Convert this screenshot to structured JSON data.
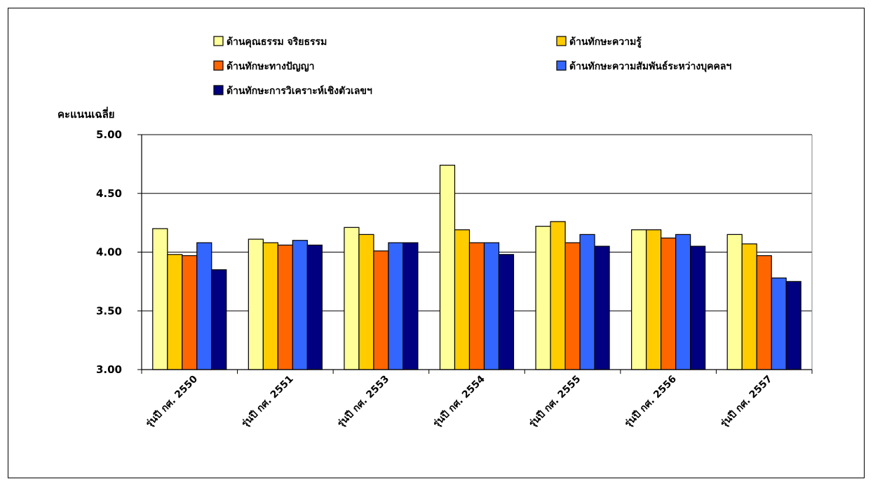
{
  "chart_data": {
    "type": "bar",
    "ylabel": "คะแนนเฉลี่ย",
    "ylim": [
      3.0,
      5.0
    ],
    "yticks": [
      "3.00",
      "3.50",
      "4.00",
      "4.50",
      "5.00"
    ],
    "ytick_values": [
      3.0,
      3.5,
      4.0,
      4.5,
      5.0
    ],
    "grid": true,
    "legend_position": "top",
    "categories": [
      "รุ่นปี กศ. 2550",
      "รุ่นปี กศ. 2551",
      "รุ่นปี กศ. 2553",
      "รุ่นปี กศ. 2554",
      "รุ่นปี กศ. 2555",
      "รุ่นปี กศ. 2556",
      "รุ่นปี กศ. 2557"
    ],
    "series": [
      {
        "name": "ด้านคุณธรรม จริยธรรม",
        "color": "#ffff99",
        "values": [
          4.2,
          4.11,
          4.21,
          4.74,
          4.22,
          4.19,
          4.15
        ]
      },
      {
        "name": "ด้านทักษะความรู้",
        "color": "#ffcc00",
        "values": [
          3.98,
          4.08,
          4.15,
          4.19,
          4.26,
          4.19,
          4.07
        ]
      },
      {
        "name": "ด้านทักษะทางปัญญา",
        "color": "#ff6600",
        "values": [
          3.97,
          4.06,
          4.01,
          4.08,
          4.08,
          4.12,
          3.97
        ]
      },
      {
        "name": "ด้านทักษะความสัมพันธ์ระหว่างบุคคลฯ",
        "color": "#3366ff",
        "values": [
          4.08,
          4.1,
          4.08,
          4.08,
          4.15,
          4.15,
          3.78
        ]
      },
      {
        "name": "ด้านทักษะการวิเคราะห์เชิงตัวเลขฯ",
        "color": "#000080",
        "values": [
          3.85,
          4.06,
          4.08,
          3.98,
          4.05,
          4.05,
          3.75
        ]
      }
    ]
  }
}
